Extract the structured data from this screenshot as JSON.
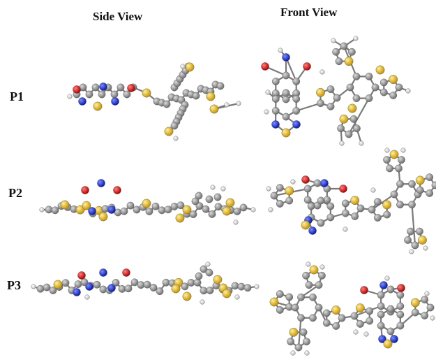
{
  "headers": {
    "side": "Side View",
    "front": "Front View"
  },
  "rows": [
    {
      "label": "P1"
    },
    {
      "label": "P2"
    },
    {
      "label": "P3"
    }
  ],
  "atom_colors": {
    "carbon": "#8c8c8c",
    "hydrogen": "#e6e6e6",
    "oxygen": "#d81a1a",
    "nitrogen": "#1c2fd0",
    "sulfur": "#e8b81a"
  }
}
